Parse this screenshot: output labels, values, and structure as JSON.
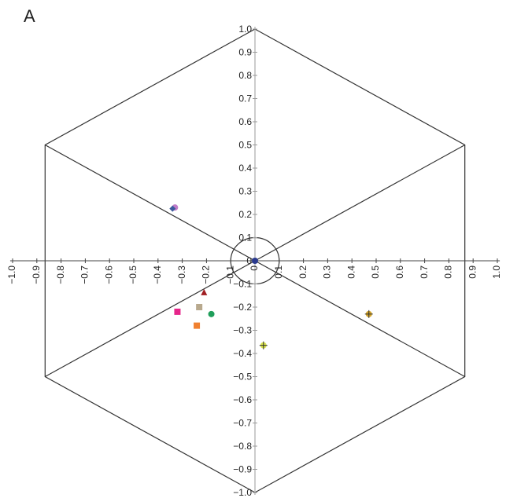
{
  "panel_label": "A",
  "chart_data": {
    "type": "scatter",
    "title": "",
    "xlabel": "",
    "ylabel": "",
    "xlim": [
      -1.0,
      1.0
    ],
    "ylim": [
      -1.0,
      1.0
    ],
    "grid": false,
    "legend": "none",
    "x_ticks": [
      "−1.0",
      "−0.9",
      "−0.8",
      "−0.7",
      "−0.6",
      "−0.5",
      "−0.4",
      "−0.3",
      "−0.2",
      "−0.1",
      "0",
      "0.1",
      "0.2",
      "0.3",
      "0.4",
      "0.5",
      "0.6",
      "0.7",
      "0.8",
      "0.9",
      "1.0"
    ],
    "y_ticks": [
      "1.0",
      "0.9",
      "0.8",
      "0.7",
      "0.6",
      "0.5",
      "0.4",
      "0.3",
      "0.2",
      "0.1",
      "0",
      "−0.1",
      "−0.2",
      "−0.3",
      "−0.4",
      "−0.5",
      "−0.6",
      "−0.7",
      "−0.8",
      "−0.9",
      "−1.0"
    ],
    "hexagon_radius": 1.0,
    "circle_radius": 0.1,
    "points": [
      {
        "x": -0.33,
        "y": 0.23,
        "marker": "circle",
        "color": "#c07cc8"
      },
      {
        "x": -0.34,
        "y": 0.225,
        "marker": "diamond",
        "color": "#3d5a9e"
      },
      {
        "x": -0.21,
        "y": -0.135,
        "marker": "triangle",
        "color": "#a01e22"
      },
      {
        "x": -0.32,
        "y": -0.22,
        "marker": "square",
        "color": "#e6258a"
      },
      {
        "x": -0.23,
        "y": -0.2,
        "marker": "square",
        "color": "#b8a98e"
      },
      {
        "x": -0.18,
        "y": -0.23,
        "marker": "circle",
        "color": "#1f9e5a"
      },
      {
        "x": -0.24,
        "y": -0.28,
        "marker": "square",
        "color": "#f08030"
      },
      {
        "x": 0.035,
        "y": -0.365,
        "marker": "plus-circle",
        "color": "#d7e04a"
      },
      {
        "x": 0.47,
        "y": -0.23,
        "marker": "plus-circle",
        "color": "#d4a52a"
      },
      {
        "x": 0.0,
        "y": 0.0,
        "marker": "circle",
        "color": "#2a3a8f"
      }
    ]
  }
}
